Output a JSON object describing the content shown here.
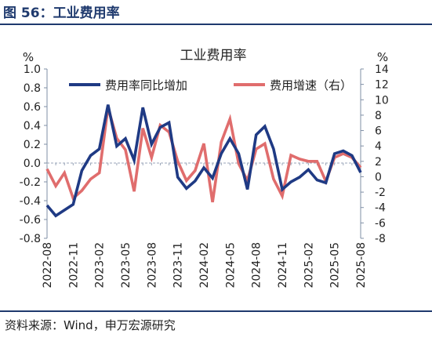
{
  "figure": {
    "title": "图 56：工业费用率",
    "source": "资料来源：Wind，申万宏源研究"
  },
  "chart_data": {
    "type": "line",
    "title": "工业费用率",
    "left_unit": "%",
    "right_unit": "%",
    "legend_position": "top",
    "x_ticks": [
      "2022-08",
      "2022-11",
      "2023-02",
      "2023-05",
      "2023-08",
      "2023-11",
      "2024-02",
      "2024-05",
      "2024-08",
      "2024-11",
      "2025-02",
      "2025-05",
      "2025-08"
    ],
    "left_axis": {
      "ylim": [
        -0.8,
        1.0
      ],
      "ticks": [
        "1.0",
        "0.8",
        "0.6",
        "0.4",
        "0.2",
        "0.0",
        "-0.2",
        "-0.4",
        "-0.6",
        "-0.8"
      ]
    },
    "right_axis": {
      "ylim": [
        -8,
        14
      ],
      "ticks": [
        "14",
        "12",
        "10",
        "8",
        "6",
        "4",
        "2",
        "0",
        "-2",
        "-4",
        "-6",
        "-8"
      ]
    },
    "categories": [
      "2022-08",
      "2022-09",
      "2022-10",
      "2022-11",
      "2022-12",
      "2023-01",
      "2023-02",
      "2023-03",
      "2023-04",
      "2023-05",
      "2023-06",
      "2023-07",
      "2023-08",
      "2023-09",
      "2023-10",
      "2023-11",
      "2023-12",
      "2024-01",
      "2024-02",
      "2024-03",
      "2024-04",
      "2024-05",
      "2024-06",
      "2024-07",
      "2024-08",
      "2024-09",
      "2024-10",
      "2024-11",
      "2024-12",
      "2025-01",
      "2025-02",
      "2025-03",
      "2025-04",
      "2025-05",
      "2025-06",
      "2025-07",
      "2025-08"
    ],
    "series": [
      {
        "name": "费用率同比增加",
        "axis": "left",
        "color": "#1f3a84",
        "values": [
          -0.45,
          -0.56,
          -0.5,
          -0.44,
          -0.08,
          0.08,
          0.15,
          0.62,
          0.18,
          0.26,
          0.03,
          0.59,
          0.2,
          0.38,
          0.43,
          -0.15,
          -0.27,
          -0.19,
          -0.05,
          -0.16,
          0.1,
          0.26,
          0.1,
          -0.28,
          0.3,
          0.39,
          0.15,
          -0.28,
          -0.2,
          -0.15,
          -0.07,
          -0.18,
          -0.21,
          0.1,
          0.13,
          0.08,
          -0.1
        ]
      },
      {
        "name": "费用增速（右）",
        "axis": "right",
        "color": "#e06d6d",
        "values": [
          1.0,
          -1.2,
          0.5,
          -2.8,
          -1.8,
          -0.3,
          0.5,
          9.0,
          5.0,
          3.5,
          -1.9,
          6.3,
          2.5,
          6.7,
          5.8,
          2.0,
          -0.5,
          0.8,
          4.3,
          -3.3,
          4.5,
          7.5,
          1.7,
          -0.5,
          3.6,
          4.3,
          -0.3,
          -2.5,
          2.8,
          2.3,
          2.0,
          2.0,
          -0.6,
          2.5,
          3.0,
          2.5,
          1.2
        ]
      }
    ]
  }
}
